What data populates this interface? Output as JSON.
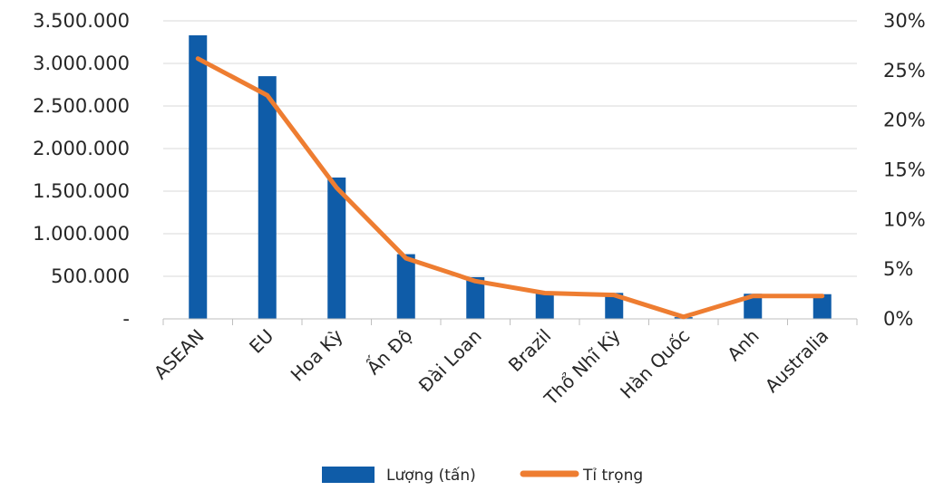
{
  "chart_data": {
    "type": "bar",
    "categories": [
      "ASEAN",
      "EU",
      "Hoa Kỳ",
      "Ấn Độ",
      "Đài Loan",
      "Brazil",
      "Thổ Nhĩ Kỳ",
      "Hàn Quốc",
      "Anh",
      "Australia"
    ],
    "series": [
      {
        "name": "Lượng (tấn)",
        "type": "bar",
        "axis": "left",
        "color": "#0F5CA8",
        "values": [
          3330000,
          2850000,
          1660000,
          760000,
          490000,
          305000,
          305000,
          20000,
          295000,
          290000
        ]
      },
      {
        "name": "Tỉ trọng",
        "type": "line",
        "axis": "right",
        "color": "#EE7D31",
        "values": [
          26.2,
          22.5,
          13.2,
          6.1,
          3.8,
          2.6,
          2.4,
          0.2,
          2.3,
          2.3
        ]
      }
    ],
    "ylim": [
      0,
      3500000
    ],
    "y2lim": [
      0,
      30
    ],
    "yticks": [
      "-",
      "500.000",
      "1.000.000",
      "1.500.000",
      "2.000.000",
      "2.500.000",
      "3.000.000",
      "3.500.000"
    ],
    "y2ticks": [
      "0%",
      "5%",
      "10%",
      "15%",
      "20%",
      "25%",
      "30%"
    ],
    "title": "",
    "xlabel": "",
    "ylabel": "",
    "grid": true,
    "legend_position": "bottom"
  }
}
